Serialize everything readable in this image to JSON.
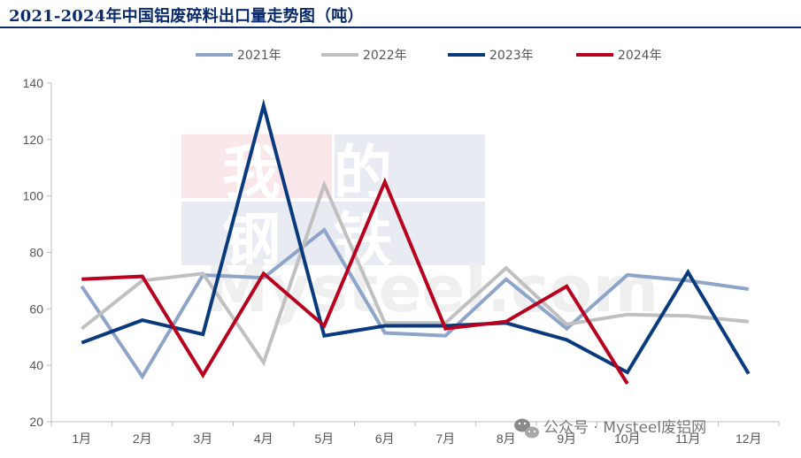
{
  "chart_data": {
    "type": "line",
    "title": "2021-2024年中国铝废碎料出口量走势图（吨）",
    "categories": [
      "1月",
      "2月",
      "3月",
      "4月",
      "5月",
      "6月",
      "7月",
      "8月",
      "9月",
      "10月",
      "11月",
      "12月"
    ],
    "ylim": [
      20,
      140
    ],
    "yticks": [
      20,
      40,
      60,
      80,
      100,
      120,
      140
    ],
    "grid": false,
    "legend_position": "top",
    "series": [
      {
        "name": "2021年",
        "color": "#8ea4c9",
        "values": [
          68,
          36,
          72,
          71,
          88,
          51.5,
          50.5,
          70.5,
          53,
          72,
          70,
          67
        ]
      },
      {
        "name": "2022年",
        "color": "#c0c0c0",
        "values": [
          53,
          70,
          72.5,
          41,
          104,
          55,
          55,
          74.5,
          54.5,
          58,
          57.5,
          55.5
        ]
      },
      {
        "name": "2023年",
        "color": "#0a3a7e",
        "values": [
          48,
          56,
          51,
          132,
          50.5,
          54,
          54,
          55,
          49,
          37.5,
          73,
          37
        ]
      },
      {
        "name": "2024年",
        "color": "#b8001f",
        "values": [
          70.5,
          71.5,
          36.5,
          72.5,
          54,
          105,
          53,
          55.5,
          68,
          33.5,
          null,
          null
        ]
      }
    ]
  },
  "watermark": {
    "cn_line1": "我的",
    "cn_line2": "钢铁",
    "en": "Mysteel.com"
  },
  "source_label": "公众号 · Mysteel废铝网"
}
